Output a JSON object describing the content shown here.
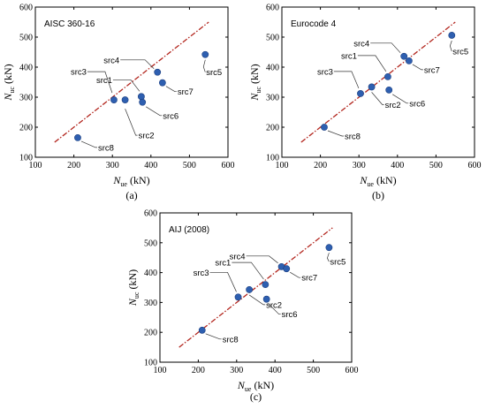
{
  "chart_data": [
    {
      "type": "scatter",
      "panel_label": "(a)",
      "code_label": "AISC 360-16",
      "ylabel_main": "N",
      "ylabel_sub": "uc",
      "ylabel_unit": "(kN)",
      "xlabel_main": "N",
      "xlabel_sub": "ue",
      "xlabel_unit": "(kN)",
      "xlim": [
        100,
        600
      ],
      "ylim": [
        100,
        600
      ],
      "xticks": [
        "100",
        "200",
        "300",
        "400",
        "500",
        "600"
      ],
      "yticks": [
        "100",
        "200",
        "300",
        "400",
        "500",
        "600"
      ],
      "reference_line": {
        "from": [
          150,
          150
        ],
        "to": [
          550,
          550
        ]
      },
      "points": [
        {
          "name": "src1",
          "x": 375,
          "y": 302
        },
        {
          "name": "src2",
          "x": 333,
          "y": 291
        },
        {
          "name": "src3",
          "x": 304,
          "y": 291
        },
        {
          "name": "src4",
          "x": 417,
          "y": 383
        },
        {
          "name": "src5",
          "x": 541,
          "y": 442
        },
        {
          "name": "src6",
          "x": 378,
          "y": 283
        },
        {
          "name": "src7",
          "x": 430,
          "y": 348
        },
        {
          "name": "src8",
          "x": 210,
          "y": 165
        }
      ]
    },
    {
      "type": "scatter",
      "panel_label": "(b)",
      "code_label": "Eurocode 4",
      "ylabel_main": "N",
      "ylabel_sub": "uc",
      "ylabel_unit": "(kN)",
      "xlabel_main": "N",
      "xlabel_sub": "ue",
      "xlabel_unit": "(kN)",
      "xlim": [
        100,
        600
      ],
      "ylim": [
        100,
        600
      ],
      "xticks": [
        "100",
        "200",
        "300",
        "400",
        "500",
        "600"
      ],
      "yticks": [
        "100",
        "200",
        "300",
        "400",
        "500",
        "600"
      ],
      "reference_line": {
        "from": [
          150,
          150
        ],
        "to": [
          550,
          550
        ]
      },
      "points": [
        {
          "name": "src1",
          "x": 375,
          "y": 368
        },
        {
          "name": "src2",
          "x": 333,
          "y": 334
        },
        {
          "name": "src3",
          "x": 304,
          "y": 312
        },
        {
          "name": "src4",
          "x": 417,
          "y": 436
        },
        {
          "name": "src5",
          "x": 541,
          "y": 506
        },
        {
          "name": "src6",
          "x": 378,
          "y": 324
        },
        {
          "name": "src7",
          "x": 430,
          "y": 421
        },
        {
          "name": "src8",
          "x": 210,
          "y": 200
        }
      ]
    },
    {
      "type": "scatter",
      "panel_label": "(c)",
      "code_label": "AIJ (2008)",
      "ylabel_main": "N",
      "ylabel_sub": "uc",
      "ylabel_unit": "(kN)",
      "xlabel_main": "N",
      "xlabel_sub": "ue",
      "xlabel_unit": "(kN)",
      "xlim": [
        100,
        600
      ],
      "ylim": [
        100,
        600
      ],
      "xticks": [
        "100",
        "200",
        "300",
        "400",
        "500",
        "600"
      ],
      "yticks": [
        "100",
        "200",
        "300",
        "400",
        "500",
        "600"
      ],
      "reference_line": {
        "from": [
          150,
          150
        ],
        "to": [
          550,
          550
        ]
      },
      "points": [
        {
          "name": "src1",
          "x": 375,
          "y": 360
        },
        {
          "name": "src2",
          "x": 333,
          "y": 343
        },
        {
          "name": "src3",
          "x": 304,
          "y": 318
        },
        {
          "name": "src4",
          "x": 417,
          "y": 420
        },
        {
          "name": "src5",
          "x": 541,
          "y": 484
        },
        {
          "name": "src6",
          "x": 378,
          "y": 311
        },
        {
          "name": "src7",
          "x": 430,
          "y": 413
        },
        {
          "name": "src8",
          "x": 210,
          "y": 207
        }
      ]
    }
  ],
  "colors": {
    "point_fill": "#2e5fb0",
    "point_stroke": "#1c3f80",
    "reference_line": "#b3261e",
    "axis": "#000000"
  }
}
